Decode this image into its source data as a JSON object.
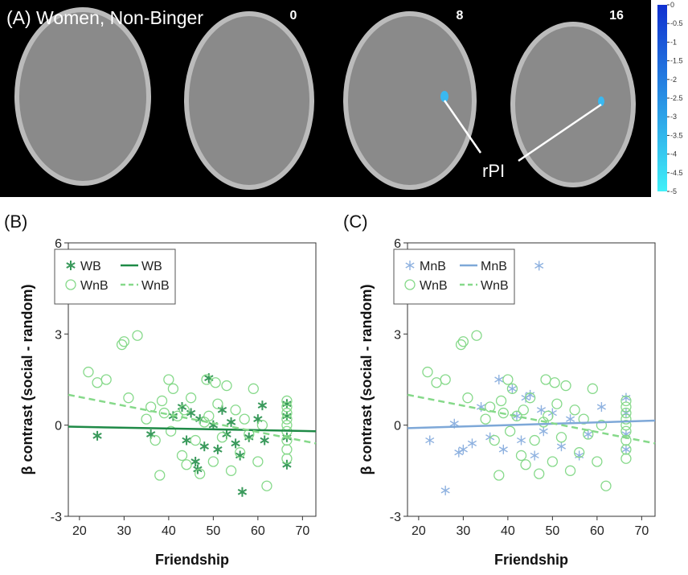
{
  "panel_a": {
    "title": "(A) Women, Non-Binger",
    "slices": [
      "0",
      "8",
      "16"
    ],
    "annotation": "rPI",
    "colorbar_range": [
      0,
      -5
    ],
    "colorbar_ticks": [
      0,
      -0.5,
      -1,
      -1.5,
      -2,
      -2.5,
      -3,
      -3.5,
      -4,
      -4.5,
      -5
    ]
  },
  "chart_data": [
    {
      "type": "scatter",
      "panel": "(B)",
      "x_label": "Friendship",
      "y_label": "β contrast (social - random)",
      "xlim": [
        17.5,
        73
      ],
      "ylim": [
        -3,
        6
      ],
      "xticks": [
        20,
        30,
        40,
        50,
        60,
        70
      ],
      "yticks": [
        -3,
        0,
        3,
        6
      ],
      "grid": false,
      "legend": "upper left",
      "series": [
        {
          "name": "WB",
          "kind": "scatter",
          "marker": "star",
          "color": "#3a9a5c",
          "x": [
            24,
            36,
            41,
            43,
            44,
            45,
            46,
            46.5,
            47,
            48,
            49,
            50,
            51,
            52,
            53,
            54,
            55,
            56,
            56.5,
            58,
            60,
            61,
            61.5,
            66.5,
            66.5,
            66.5,
            66.5
          ],
          "values": [
            -0.35,
            -0.3,
            0.3,
            0.6,
            -0.5,
            0.4,
            -1.2,
            -1.45,
            0.2,
            -0.7,
            1.55,
            0.0,
            -0.8,
            0.5,
            -0.3,
            0.1,
            -0.6,
            -1.0,
            -2.2,
            -0.4,
            0.2,
            0.65,
            -0.5,
            0.7,
            0.3,
            -0.4,
            -1.3
          ]
        },
        {
          "name": "WnB",
          "kind": "scatter",
          "marker": "circle",
          "color": "#86d98a",
          "x": [
            22,
            24,
            26,
            29.5,
            30,
            33,
            31,
            35,
            36,
            37,
            38,
            38.5,
            39,
            40,
            40.5,
            41,
            42,
            43,
            43.5,
            44,
            45,
            46,
            47,
            48,
            48.5,
            49,
            50,
            50.5,
            51,
            52,
            53,
            54,
            55,
            56,
            57,
            58,
            59,
            60,
            61,
            62,
            66.5,
            66.5,
            66.5,
            66.5,
            66.5,
            66.5,
            66.5,
            66.5,
            66.5
          ],
          "values": [
            1.75,
            1.4,
            1.5,
            2.65,
            2.75,
            2.95,
            0.9,
            0.2,
            0.6,
            -0.5,
            -1.65,
            0.8,
            0.4,
            1.5,
            -0.2,
            1.2,
            0.3,
            -1.0,
            0.5,
            -1.3,
            0.9,
            -0.5,
            -1.6,
            0.1,
            1.5,
            0.3,
            -1.2,
            1.4,
            0.7,
            -0.4,
            1.3,
            -1.5,
            0.5,
            -0.9,
            0.2,
            -0.3,
            1.2,
            -1.2,
            0.0,
            -2.0,
            0.8,
            0.6,
            0.4,
            0.2,
            0.0,
            -0.2,
            -0.5,
            -0.8,
            -1.1
          ]
        },
        {
          "name": "WB",
          "kind": "line",
          "line_style": "solid",
          "color": "#1f8a47",
          "x": [
            17.5,
            73
          ],
          "values": [
            -0.05,
            -0.2
          ]
        },
        {
          "name": "WnB",
          "kind": "line",
          "line_style": "dashed",
          "color": "#86d98a",
          "x": [
            17.5,
            73
          ],
          "values": [
            1.0,
            -0.6
          ]
        }
      ]
    },
    {
      "type": "scatter",
      "panel": "(C)",
      "x_label": "Friendship",
      "y_label": "β contrast (social - random)",
      "xlim": [
        17.5,
        73
      ],
      "ylim": [
        -3,
        6
      ],
      "xticks": [
        20,
        30,
        40,
        50,
        60,
        70
      ],
      "yticks": [
        -3,
        0,
        3,
        6
      ],
      "grid": false,
      "legend": "upper left",
      "series": [
        {
          "name": "MnB",
          "kind": "scatter",
          "marker": "asterisk",
          "color": "#8fb2e0",
          "x": [
            22.5,
            26,
            28,
            29,
            30,
            32,
            34,
            36,
            38,
            39,
            41,
            42,
            43,
            44,
            45,
            46,
            47,
            47.5,
            48,
            50,
            52,
            54,
            56,
            58,
            61,
            66.5,
            66.5,
            66.5,
            66.5
          ],
          "values": [
            -0.5,
            -2.15,
            0.05,
            -0.9,
            -0.8,
            -0.6,
            0.6,
            -0.4,
            1.5,
            -0.8,
            1.2,
            0.3,
            -0.5,
            0.9,
            1.0,
            -1.0,
            5.25,
            0.5,
            -0.2,
            0.4,
            -0.7,
            0.2,
            -1.0,
            -0.3,
            0.6,
            0.9,
            0.4,
            -0.3,
            -0.8
          ]
        },
        {
          "name": "WnB",
          "kind": "scatter",
          "marker": "circle",
          "color": "#86d98a",
          "x": [
            22,
            24,
            26,
            29.5,
            30,
            33,
            31,
            35,
            36,
            37,
            38,
            38.5,
            39,
            40,
            40.5,
            41,
            42,
            43,
            43.5,
            44,
            45,
            46,
            47,
            48,
            48.5,
            49,
            50,
            50.5,
            51,
            52,
            53,
            54,
            55,
            56,
            57,
            58,
            59,
            60,
            61,
            62,
            66.5,
            66.5,
            66.5,
            66.5,
            66.5,
            66.5,
            66.5,
            66.5,
            66.5
          ],
          "values": [
            1.75,
            1.4,
            1.5,
            2.65,
            2.75,
            2.95,
            0.9,
            0.2,
            0.6,
            -0.5,
            -1.65,
            0.8,
            0.4,
            1.5,
            -0.2,
            1.2,
            0.3,
            -1.0,
            0.5,
            -1.3,
            0.9,
            -0.5,
            -1.6,
            0.1,
            1.5,
            0.3,
            -1.2,
            1.4,
            0.7,
            -0.4,
            1.3,
            -1.5,
            0.5,
            -0.9,
            0.2,
            -0.3,
            1.2,
            -1.2,
            0.0,
            -2.0,
            0.8,
            0.6,
            0.4,
            0.2,
            0.0,
            -0.2,
            -0.5,
            -0.8,
            -1.1
          ]
        },
        {
          "name": "MnB",
          "kind": "line",
          "line_style": "solid",
          "color": "#7ea8d8",
          "x": [
            17.5,
            73
          ],
          "values": [
            -0.1,
            0.15
          ]
        },
        {
          "name": "WnB",
          "kind": "line",
          "line_style": "dashed",
          "color": "#86d98a",
          "x": [
            17.5,
            73
          ],
          "values": [
            1.0,
            -0.6
          ]
        }
      ]
    }
  ]
}
